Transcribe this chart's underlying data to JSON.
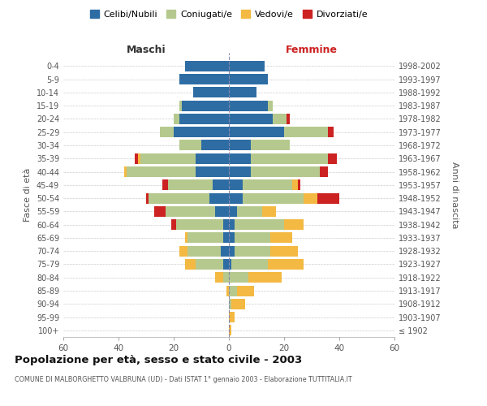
{
  "age_groups": [
    "100+",
    "95-99",
    "90-94",
    "85-89",
    "80-84",
    "75-79",
    "70-74",
    "65-69",
    "60-64",
    "55-59",
    "50-54",
    "45-49",
    "40-44",
    "35-39",
    "30-34",
    "25-29",
    "20-24",
    "15-19",
    "10-14",
    "5-9",
    "0-4"
  ],
  "birth_years": [
    "≤ 1902",
    "1903-1907",
    "1908-1912",
    "1913-1917",
    "1918-1922",
    "1923-1927",
    "1928-1932",
    "1933-1937",
    "1938-1942",
    "1943-1947",
    "1948-1952",
    "1953-1957",
    "1958-1962",
    "1963-1967",
    "1968-1972",
    "1973-1977",
    "1978-1982",
    "1983-1987",
    "1988-1992",
    "1993-1997",
    "1998-2002"
  ],
  "colors": {
    "celibi": "#2e6da4",
    "coniugati": "#b5c98e",
    "vedovi": "#f4b942",
    "divorziati": "#cc2222"
  },
  "males": {
    "celibi": [
      0,
      0,
      0,
      0,
      0,
      2,
      3,
      2,
      2,
      5,
      7,
      6,
      12,
      12,
      10,
      20,
      18,
      17,
      13,
      18,
      16
    ],
    "coniugati": [
      0,
      0,
      0,
      0,
      2,
      10,
      12,
      13,
      17,
      18,
      22,
      16,
      25,
      20,
      8,
      5,
      2,
      1,
      0,
      0,
      0
    ],
    "vedovi": [
      0,
      0,
      0,
      1,
      3,
      4,
      3,
      1,
      0,
      0,
      0,
      0,
      1,
      1,
      0,
      0,
      0,
      0,
      0,
      0,
      0
    ],
    "divorziati": [
      0,
      0,
      0,
      0,
      0,
      0,
      0,
      0,
      2,
      4,
      1,
      2,
      0,
      1,
      0,
      0,
      0,
      0,
      0,
      0,
      0
    ]
  },
  "females": {
    "celibi": [
      0,
      0,
      0,
      0,
      0,
      1,
      2,
      2,
      2,
      3,
      5,
      5,
      8,
      8,
      8,
      20,
      16,
      14,
      10,
      14,
      13
    ],
    "coniugati": [
      0,
      0,
      1,
      3,
      7,
      13,
      13,
      13,
      18,
      9,
      22,
      18,
      25,
      28,
      14,
      16,
      5,
      2,
      0,
      0,
      0
    ],
    "vedovi": [
      1,
      2,
      5,
      6,
      12,
      13,
      10,
      8,
      7,
      5,
      5,
      2,
      0,
      0,
      0,
      0,
      0,
      0,
      0,
      0,
      0
    ],
    "divorziati": [
      0,
      0,
      0,
      0,
      0,
      0,
      0,
      0,
      0,
      0,
      8,
      1,
      3,
      3,
      0,
      2,
      1,
      0,
      0,
      0,
      0
    ]
  },
  "xlim": 60,
  "title": "Popolazione per età, sesso e stato civile - 2003",
  "subtitle": "COMUNE DI MALBORGHETTO VALBRUNA (UD) - Dati ISTAT 1° gennaio 2003 - Elaborazione TUTTITALIA.IT",
  "ylabel_left": "Fasce di età",
  "ylabel_right": "Anni di nascita",
  "xlabel_left": "Maschi",
  "xlabel_right": "Femmine",
  "legend_labels": [
    "Celibi/Nubili",
    "Coniugati/e",
    "Vedovi/e",
    "Divorziati/e"
  ],
  "background_color": "#ffffff",
  "grid_color": "#cccccc"
}
